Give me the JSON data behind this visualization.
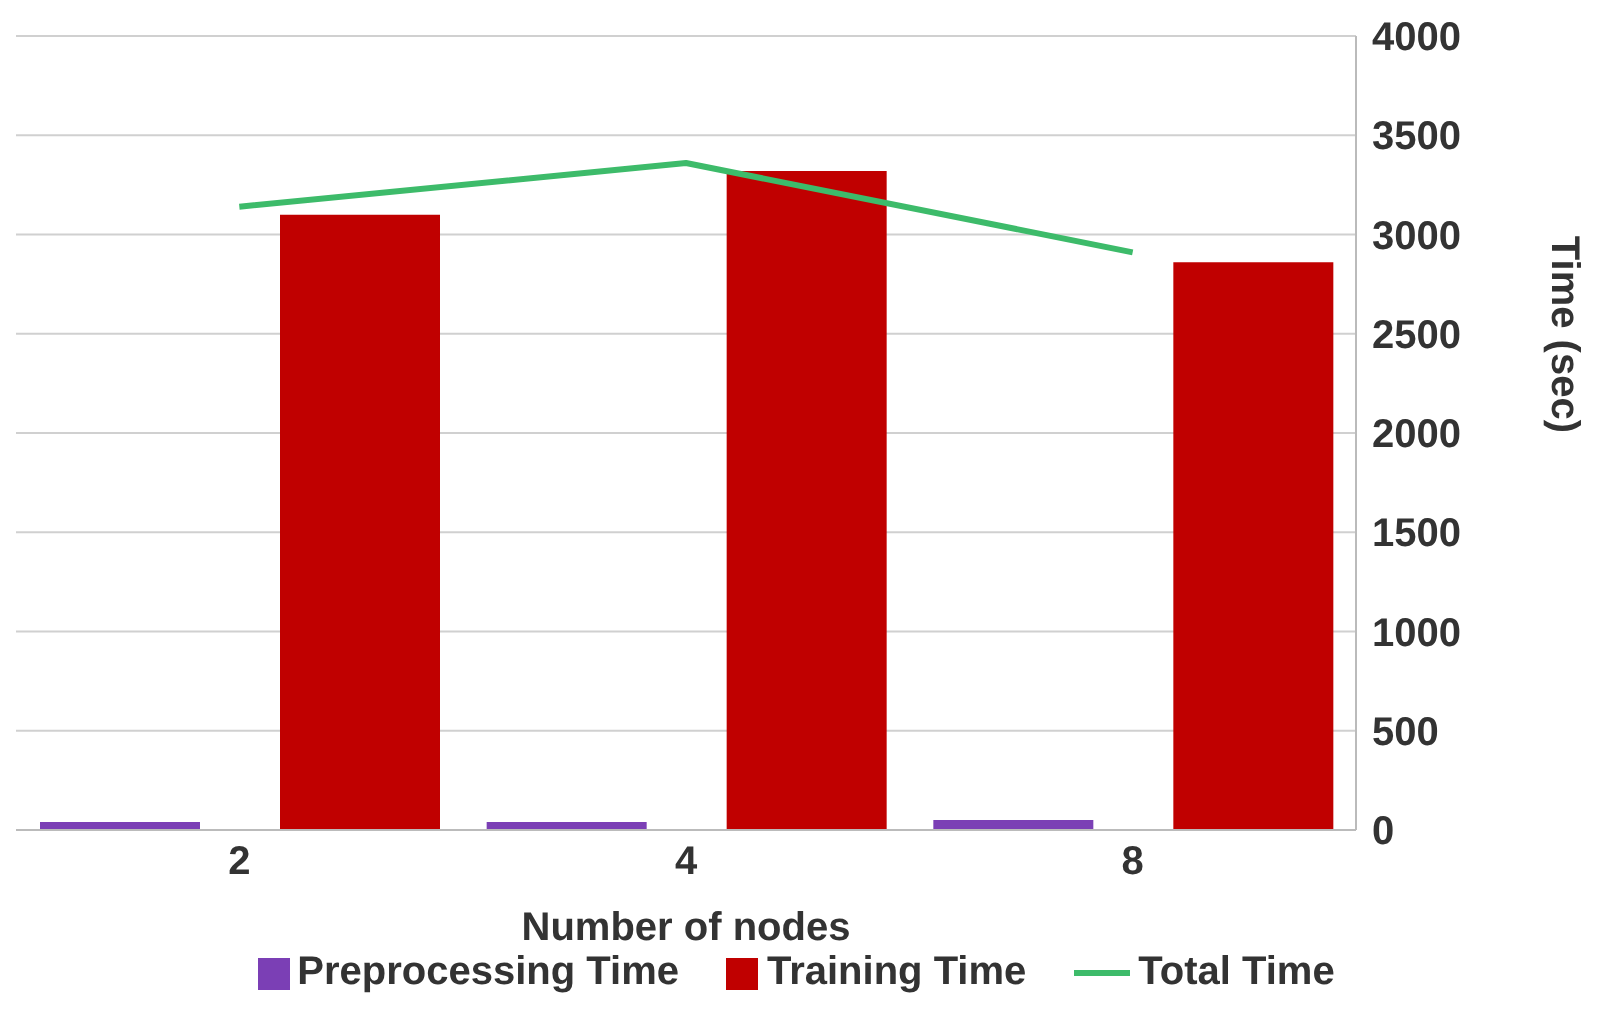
{
  "chart_data": {
    "type": "bar",
    "xlabel": "Number of nodes",
    "ylabel": "Time (sec)",
    "categories": [
      "2",
      "4",
      "8"
    ],
    "series": [
      {
        "name": "Preprocessing Time",
        "color": "#7b3fb5",
        "values": [
          40,
          40,
          50
        ]
      },
      {
        "name": "Training Time",
        "color": "#c00000",
        "values": [
          3100,
          3320,
          2860
        ]
      },
      {
        "name": "Total Time",
        "type": "line",
        "color": "#3dbb6a",
        "values": [
          3140,
          3360,
          2910
        ]
      }
    ],
    "ylim": [
      0,
      4000
    ],
    "yticks": [
      0,
      500,
      1000,
      1500,
      2000,
      2500,
      3000,
      3500,
      4000
    ],
    "grid": "y",
    "legend": "bottom",
    "marker": "none"
  }
}
